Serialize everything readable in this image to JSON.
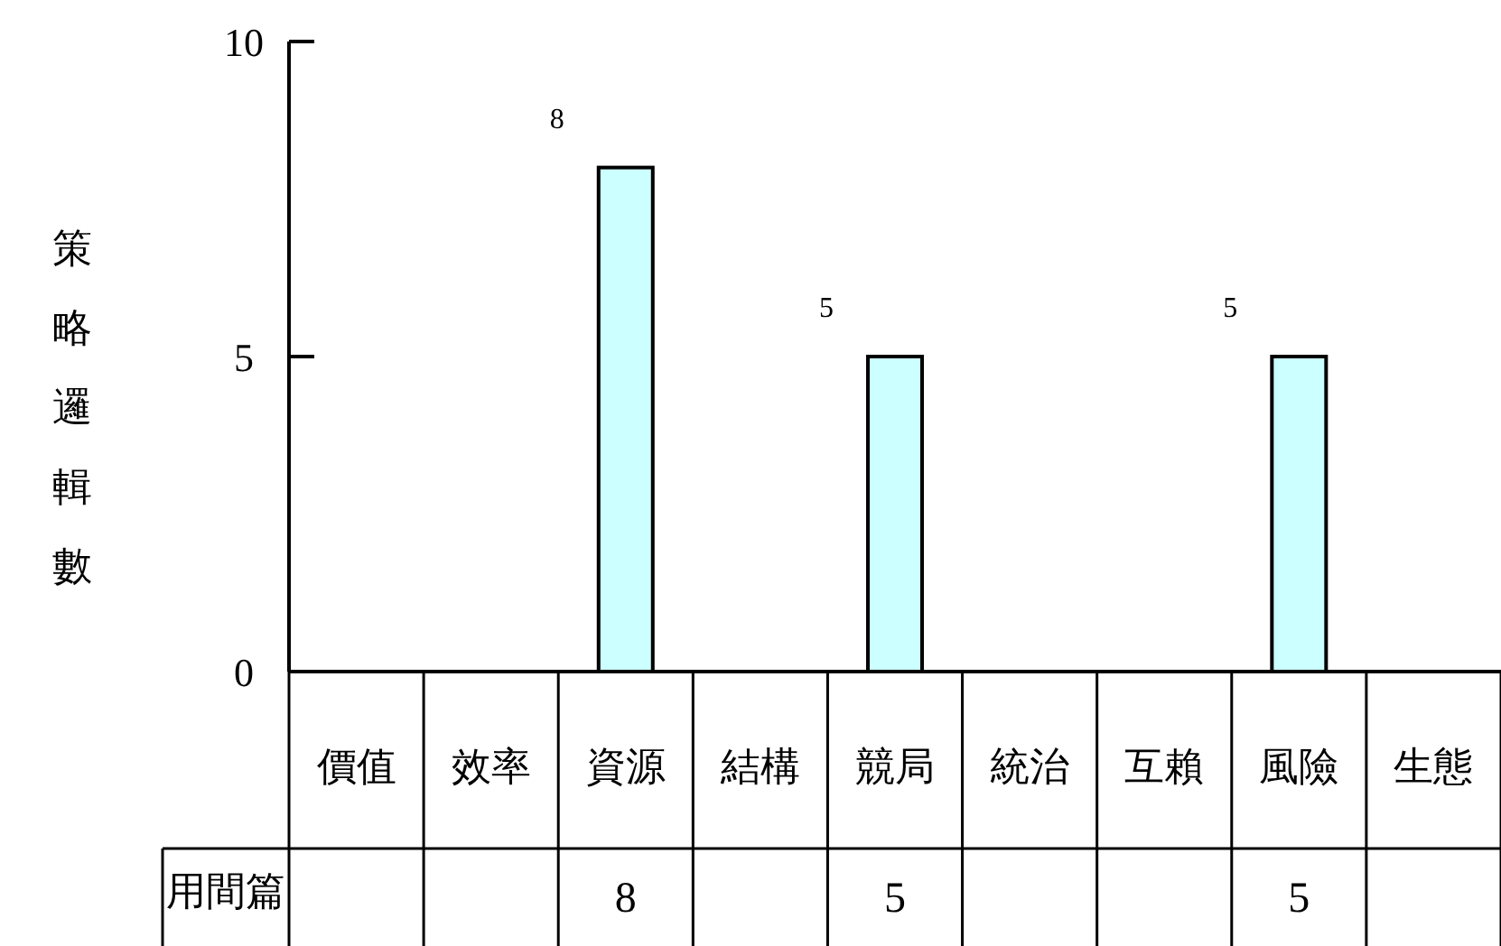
{
  "chart_data": {
    "type": "bar",
    "ylabel": "策略邏輯數",
    "categories": [
      "價值",
      "效率",
      "資源",
      "結構",
      "競局",
      "統治",
      "互賴",
      "風險",
      "生態"
    ],
    "series": [
      {
        "name": "用間篇",
        "color": "#ccffff",
        "values": [
          0,
          0,
          8,
          0,
          5,
          0,
          0,
          5,
          0
        ],
        "value_labels": [
          null,
          null,
          "8",
          null,
          "5",
          null,
          null,
          "5",
          null
        ]
      }
    ],
    "ylim": [
      0,
      10
    ],
    "yticks": [
      0,
      5,
      10
    ]
  }
}
